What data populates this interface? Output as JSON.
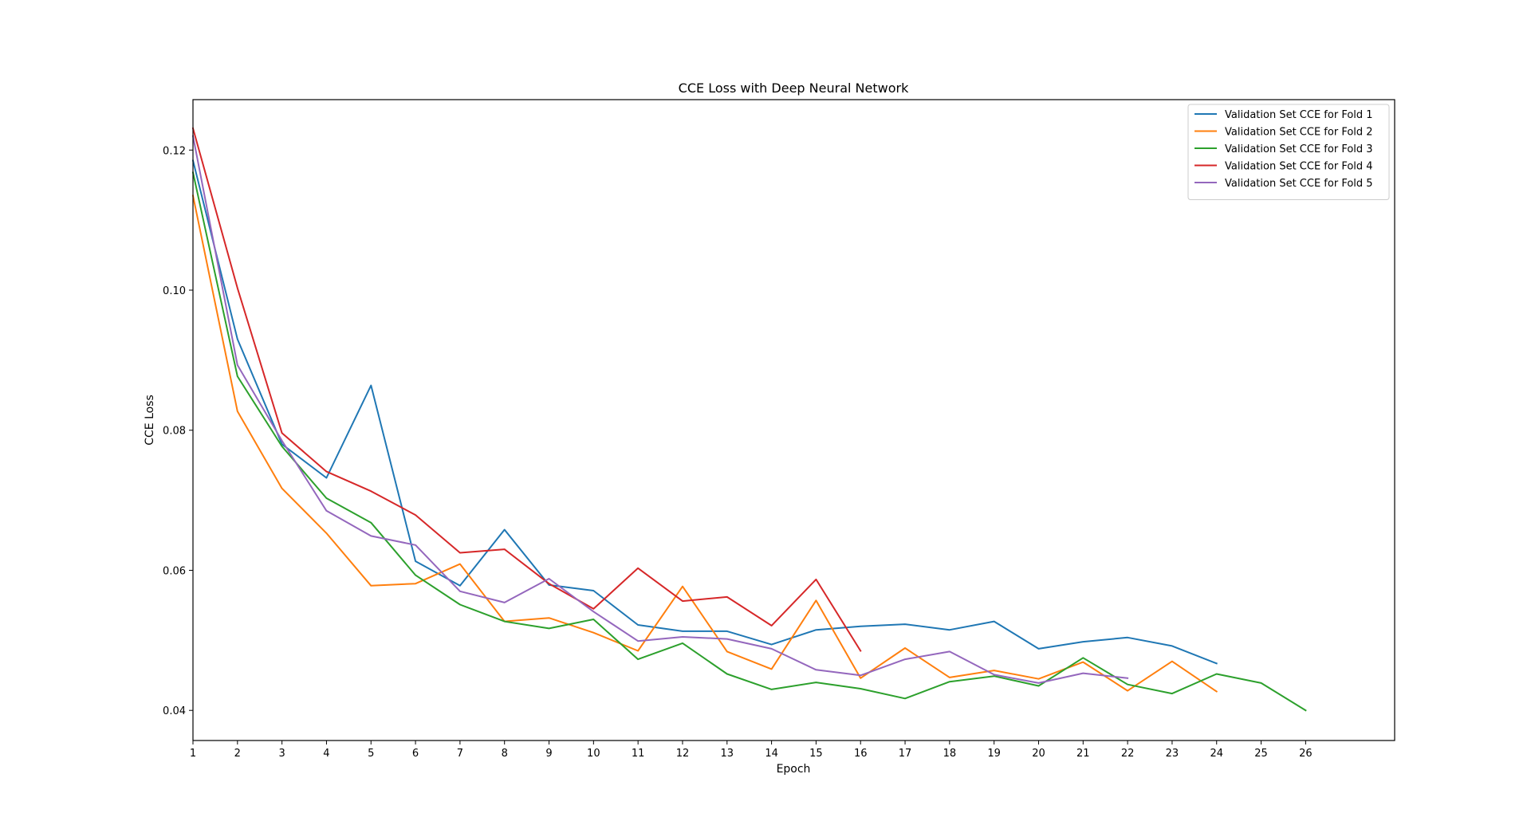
{
  "chart_data": {
    "type": "line",
    "title": "CCE Loss with Deep Neural Network",
    "xlabel": "Epoch",
    "ylabel": "CCE Loss",
    "xlim": [
      1,
      28
    ],
    "ylim": [
      0.0357,
      0.1272
    ],
    "xticks": [
      1,
      2,
      3,
      4,
      5,
      6,
      7,
      8,
      9,
      10,
      11,
      12,
      13,
      14,
      15,
      16,
      17,
      18,
      19,
      20,
      21,
      22,
      23,
      24,
      25,
      26
    ],
    "yticks": [
      0.04,
      0.06,
      0.08,
      0.1,
      0.12
    ],
    "ytick_labels": [
      "0.04",
      "0.06",
      "0.08",
      "0.10",
      "0.12"
    ],
    "grid": false,
    "legend_position": "top-right",
    "series": [
      {
        "name": "Validation Set CCE for Fold 1",
        "color": "#1f77b4",
        "x": [
          1,
          2,
          3,
          4,
          5,
          6,
          7,
          8,
          9,
          10,
          11,
          12,
          13,
          14,
          15,
          16,
          17,
          18,
          19,
          20,
          21,
          22,
          23,
          24
        ],
        "values": [
          0.1185,
          0.093,
          0.078,
          0.0732,
          0.0864,
          0.0613,
          0.0578,
          0.0658,
          0.0579,
          0.0571,
          0.0522,
          0.0513,
          0.0513,
          0.0494,
          0.0515,
          0.052,
          0.0523,
          0.0515,
          0.0527,
          0.0488,
          0.0498,
          0.0504,
          0.0492,
          0.0467
        ]
      },
      {
        "name": "Validation Set CCE for Fold 2",
        "color": "#ff7f0e",
        "x": [
          1,
          2,
          3,
          4,
          5,
          6,
          7,
          8,
          9,
          10,
          11,
          12,
          13,
          14,
          15,
          16,
          17,
          18,
          19,
          20,
          21,
          22,
          23,
          24
        ],
        "values": [
          0.1135,
          0.0827,
          0.0717,
          0.0653,
          0.0578,
          0.0581,
          0.0609,
          0.0527,
          0.0532,
          0.0511,
          0.0485,
          0.0577,
          0.0484,
          0.0459,
          0.0557,
          0.0446,
          0.0489,
          0.0447,
          0.0457,
          0.0445,
          0.0469,
          0.0428,
          0.047,
          0.0427
        ]
      },
      {
        "name": "Validation Set CCE for Fold 3",
        "color": "#2ca02c",
        "x": [
          1,
          2,
          3,
          4,
          5,
          6,
          7,
          8,
          9,
          10,
          11,
          12,
          13,
          14,
          15,
          16,
          17,
          18,
          19,
          20,
          21,
          22,
          23,
          24,
          25,
          26
        ],
        "values": [
          0.1168,
          0.0877,
          0.0777,
          0.0703,
          0.0668,
          0.0593,
          0.0551,
          0.0527,
          0.0517,
          0.053,
          0.0473,
          0.0496,
          0.0452,
          0.043,
          0.044,
          0.0431,
          0.0417,
          0.0441,
          0.0449,
          0.0435,
          0.0475,
          0.0437,
          0.0424,
          0.0452,
          0.0439,
          0.04
        ]
      },
      {
        "name": "Validation Set CCE for Fold 4",
        "color": "#d62728",
        "x": [
          1,
          2,
          3,
          4,
          5,
          6,
          7,
          8,
          9,
          10,
          11,
          12,
          13,
          14,
          15,
          16
        ],
        "values": [
          0.1231,
          0.1003,
          0.0796,
          0.0741,
          0.0713,
          0.0679,
          0.0625,
          0.063,
          0.0581,
          0.0545,
          0.0603,
          0.0556,
          0.0562,
          0.0521,
          0.0587,
          0.0485
        ]
      },
      {
        "name": "Validation Set CCE for Fold 5",
        "color": "#9467bd",
        "x": [
          1,
          2,
          3,
          4,
          5,
          6,
          7,
          8,
          9,
          10,
          11,
          12,
          13,
          14,
          15,
          16,
          17,
          18,
          19,
          20,
          21,
          22
        ],
        "values": [
          0.122,
          0.0893,
          0.0785,
          0.0685,
          0.0649,
          0.0636,
          0.057,
          0.0554,
          0.0588,
          0.0541,
          0.0499,
          0.0505,
          0.0502,
          0.0488,
          0.0458,
          0.045,
          0.0473,
          0.0484,
          0.0451,
          0.0439,
          0.0453,
          0.0446
        ]
      }
    ]
  }
}
